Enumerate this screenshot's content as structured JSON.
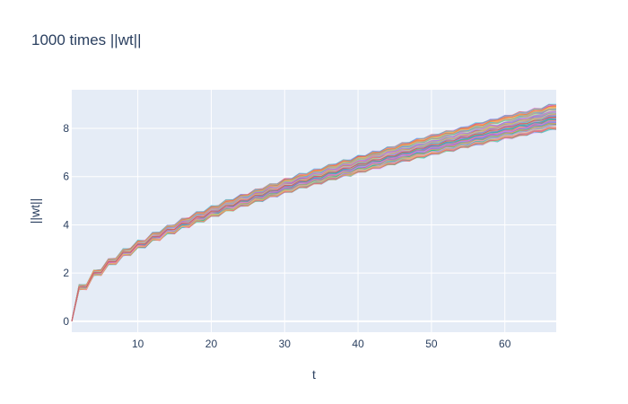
{
  "chart_data": {
    "type": "line",
    "title": "1000 times ||wt||",
    "xlabel": "t",
    "ylabel": "||wt||",
    "x_tick_labels": [
      "10",
      "20",
      "30",
      "40",
      "50",
      "60"
    ],
    "y_tick_labels": [
      "0",
      "2",
      "4",
      "6",
      "8"
    ],
    "x_ticks": [
      10,
      20,
      30,
      40,
      50,
      60
    ],
    "y_ticks": [
      0,
      2,
      4,
      6,
      8
    ],
    "xlim": [
      1,
      67
    ],
    "ylim": [
      -0.45,
      9.6
    ],
    "grid": true,
    "legend": "none",
    "series_count_shown": 1000,
    "x": [
      1,
      2,
      3,
      4,
      5,
      6,
      7,
      8,
      9,
      10,
      11,
      12,
      13,
      14,
      15,
      16,
      17,
      18,
      19,
      20,
      21,
      22,
      23,
      24,
      25,
      26,
      27,
      28,
      29,
      30,
      31,
      32,
      33,
      34,
      35,
      36,
      37,
      38,
      39,
      40,
      41,
      42,
      43,
      44,
      45,
      46,
      47,
      48,
      49,
      50,
      51,
      52,
      53,
      54,
      55,
      56,
      57,
      58,
      59,
      60,
      61,
      62,
      63,
      64,
      65,
      66,
      67
    ],
    "series": [
      {
        "values": [
          0,
          1.41,
          1.41,
          2.0,
          2.0,
          2.45,
          2.45,
          2.83,
          2.83,
          3.16,
          3.16,
          3.46,
          3.46,
          3.74,
          3.74,
          4.0,
          4.0,
          4.24,
          4.24,
          4.47,
          4.47,
          4.69,
          4.69,
          4.9,
          4.9,
          5.1,
          5.1,
          5.29,
          5.29,
          5.48,
          5.48,
          5.66,
          5.66,
          5.83,
          5.83,
          6.0,
          6.0,
          6.16,
          6.16,
          6.32,
          6.32,
          6.48,
          6.48,
          6.63,
          6.63,
          6.78,
          6.78,
          6.93,
          6.93,
          7.07,
          7.07,
          7.21,
          7.21,
          7.35,
          7.35,
          7.48,
          7.48,
          7.62,
          7.62,
          7.75,
          7.75,
          7.87,
          7.87,
          8.0,
          8.0,
          8.12,
          8.12
        ]
      },
      {
        "values": [
          0,
          1.41,
          1.41,
          2.0,
          2.0,
          2.45,
          2.45,
          2.83,
          2.83,
          3.16,
          3.16,
          3.46,
          3.46,
          3.74,
          3.74,
          4.0,
          4.0,
          4.24,
          4.24,
          4.47,
          4.47,
          4.69,
          4.69,
          4.9,
          4.9,
          5.1,
          5.1,
          5.29,
          5.29,
          5.48,
          5.48,
          5.66,
          5.66,
          5.83,
          5.83,
          6.0,
          6.0,
          6.16,
          6.16,
          6.32,
          6.32,
          6.48,
          6.48,
          6.63,
          6.63,
          6.78,
          6.78,
          6.93,
          6.93,
          7.07,
          7.07,
          7.21,
          7.21,
          7.35,
          7.35,
          7.48,
          7.48,
          7.62,
          7.62,
          7.75,
          7.75,
          7.87,
          7.87,
          8.0,
          8.0,
          8.12,
          8.12
        ]
      }
    ],
    "colors": [
      "#636efa",
      "#EF553B",
      "#00cc96",
      "#ab63fa",
      "#FFA15A",
      "#19d3f3",
      "#FF6692",
      "#B6E880",
      "#FF97FF",
      "#FECB52"
    ],
    "plot_background": "#e5ecf6",
    "grid_color": "#ffffff"
  }
}
